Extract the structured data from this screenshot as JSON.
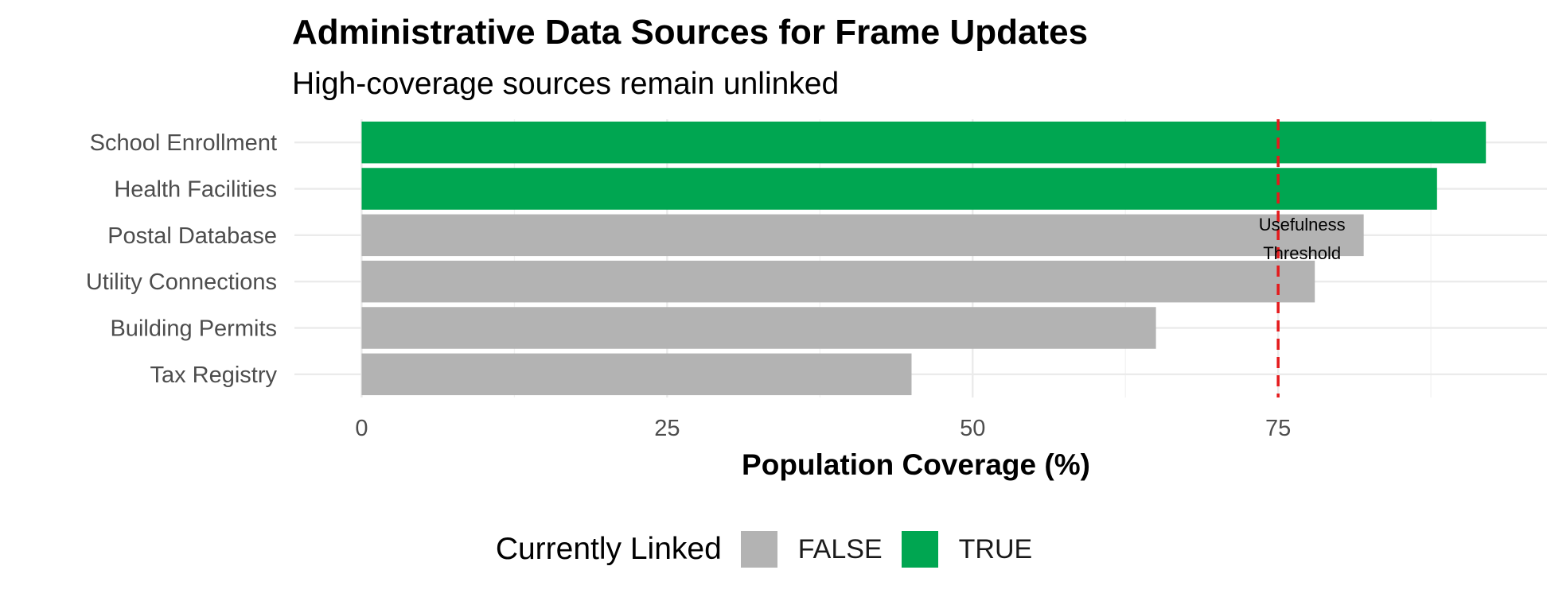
{
  "chart_data": {
    "type": "bar",
    "orientation": "horizontal",
    "title": "Administrative Data Sources for Frame Updates",
    "subtitle": "High-coverage sources remain unlinked",
    "xlabel": "Population Coverage (%)",
    "ylabel": "",
    "xlim": [
      -5.5,
      97
    ],
    "xticks": [
      0,
      25,
      50,
      75
    ],
    "grid": true,
    "categories": [
      "School Enrollment",
      "Health Facilities",
      "Postal Database",
      "Utility Connections",
      "Building Permits",
      "Tax Registry"
    ],
    "values": [
      92,
      88,
      82,
      78,
      65,
      45
    ],
    "linked": [
      true,
      true,
      false,
      false,
      false,
      false
    ],
    "threshold": {
      "value": 75,
      "label_line1": "Usefulness",
      "label_line2": "Threshold",
      "color": "#E41A1C"
    },
    "colors": {
      "FALSE": "#B3B3B3",
      "TRUE": "#00A651"
    },
    "legend": {
      "title": "Currently Linked",
      "position": "bottom",
      "items": [
        {
          "label": "FALSE",
          "color": "#B3B3B3"
        },
        {
          "label": "TRUE",
          "color": "#00A651"
        }
      ]
    }
  }
}
